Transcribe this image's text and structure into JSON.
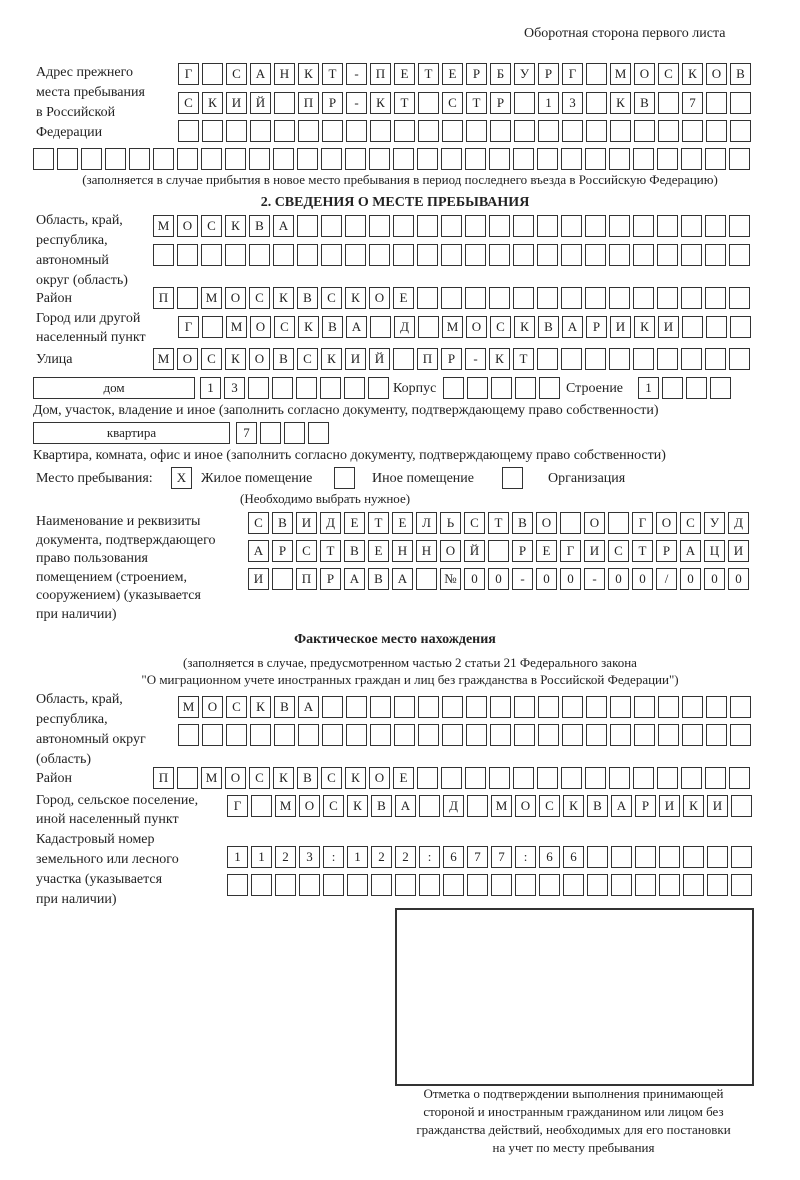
{
  "header": "Оборотная сторона первого листа",
  "prev_address": {
    "label": [
      "Адрес прежнего",
      "места пребывания",
      "в Российской",
      "Федерации"
    ],
    "rows": [
      "Г САНКТ-ПЕТЕРБУРГ МОСКОВ",
      "СКИЙ ПР-КТ СТР 13 КВ 7  ",
      "                        ",
      "                              "
    ],
    "note": "(заполняется в случае прибытия в новое место пребывания в период последнего въезда в Российскую Федерацию)"
  },
  "section2": {
    "title": "2. СВЕДЕНИЯ О МЕСТЕ ПРЕБЫВАНИЯ",
    "region_label": [
      "Область, край,",
      "республика,",
      "автономный",
      "округ (область)"
    ],
    "region_rows": [
      "МОСКВА                   ",
      "                         "
    ],
    "district_label": "Район",
    "district_row": "П МОСКВСКОЕ              ",
    "city_label": [
      "Город или другой",
      "населенный пункт"
    ],
    "city_row": "Г МОСКВА Д МОСКВАРИКИ   ",
    "street_label": "Улица",
    "street_row": "МОСКОВСКИЙ ПР-КТ         ",
    "house_type": "дом",
    "house_row": "13      ",
    "korpus_label": "Корпус",
    "korpus_row": "     ",
    "building_label": "Строение",
    "building_row": "1   ",
    "house_note": "Дом, участок, владение и иное (заполнить согласно документу, подтверждающему право собственности)",
    "flat_type": "квартира",
    "flat_row": "7   ",
    "flat_note": "Квартира, комната, офис и иное (заполнить согласно документу, подтверждающему право собственности)",
    "stay_label": "Место пребывания:",
    "stay_options": [
      {
        "mark": "X",
        "label": "Жилое помещение"
      },
      {
        "mark": "",
        "label": "Иное помещение"
      },
      {
        "mark": "",
        "label": "Организация"
      }
    ],
    "stay_note": "(Необходимо выбрать нужное)",
    "doc_label": [
      "Наименование и реквизиты",
      "документа, подтверждающего",
      "право пользования",
      "помещением (строением,",
      "сооружением) (указывается",
      "при наличии)"
    ],
    "doc_rows": [
      "СВИДЕТЕЛЬСТВО О ГОСУД",
      "АРСТВЕННОЙ РЕГИСТРАЦИ",
      "И ПРАВА №00-00-00/000"
    ]
  },
  "actual": {
    "title": "Фактическое место нахождения",
    "note": [
      "(заполняется в случае, предусмотренном частью 2 статьи 21 Федерального закона",
      "\"О миграционном учете иностранных граждан и лиц без гражданства в Российской Федерации\")"
    ],
    "region_label": [
      "Область, край,",
      "республика,",
      "автономный округ",
      "(область)"
    ],
    "region_rows": [
      "МОСКВА                  ",
      "                        "
    ],
    "district_label": "Район",
    "district_row": "П МОСКВСКОЕ              ",
    "city_label": [
      "Город, сельское поселение,",
      "иной населенный пункт"
    ],
    "city_row": "Г МОСКВА Д МОСКВАРИКИ ",
    "cadastre_label": [
      "Кадастровый номер",
      "земельного или лесного",
      "участка (указывается",
      "при наличии)"
    ],
    "cadastre_rows": [
      "1123:122:677:66       ",
      "                      "
    ]
  },
  "stamp_caption": [
    "Отметка о подтверждении выполнения принимающей",
    "стороной и иностранным гражданином или лицом без",
    "гражданства действий, необходимых для его постановки",
    "на учет по месту пребывания"
  ]
}
